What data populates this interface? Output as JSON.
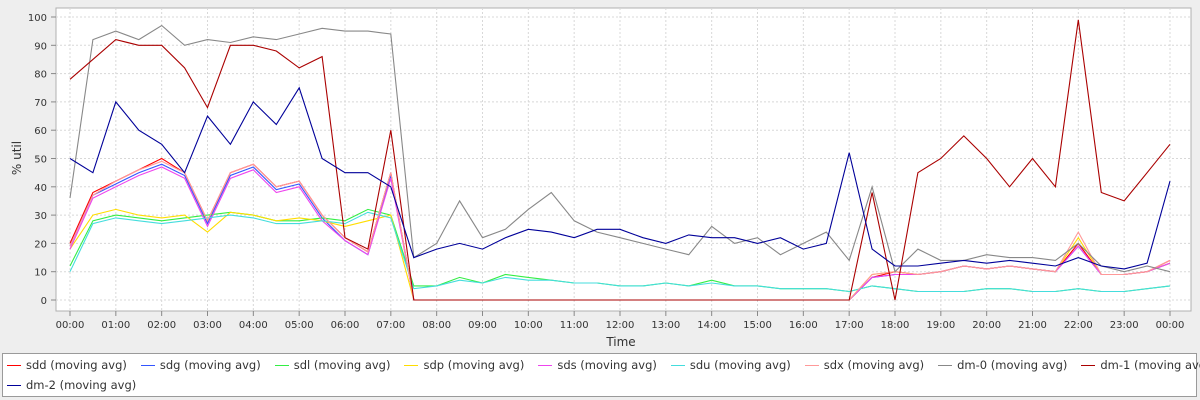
{
  "chart_data": {
    "type": "line",
    "xlabel": "Time",
    "ylabel": "% util",
    "ylim": [
      0,
      100
    ],
    "yticks": [
      0,
      10,
      20,
      30,
      40,
      50,
      60,
      70,
      80,
      90,
      100
    ],
    "xticks": [
      "00:00",
      "01:00",
      "02:00",
      "03:00",
      "04:00",
      "05:00",
      "06:00",
      "07:00",
      "08:00",
      "09:00",
      "10:00",
      "11:00",
      "12:00",
      "13:00",
      "14:00",
      "15:00",
      "16:00",
      "17:00",
      "18:00",
      "19:00",
      "20:00",
      "21:00",
      "22:00",
      "23:00",
      "00:00"
    ],
    "grid": true,
    "legend_position": "bottom",
    "x_hours": [
      0,
      0.5,
      1,
      1.5,
      2,
      2.5,
      3,
      3.5,
      4,
      4.5,
      5,
      5.5,
      6,
      6.5,
      7,
      7.5,
      8,
      8.5,
      9,
      9.5,
      10,
      10.5,
      11,
      11.5,
      12,
      12.5,
      13,
      13.5,
      14,
      14.5,
      15,
      15.5,
      16,
      16.5,
      17,
      17.5,
      18,
      18.5,
      19,
      19.5,
      20,
      20.5,
      21,
      21.5,
      22,
      22.5,
      23,
      23.5,
      24
    ],
    "series": [
      {
        "name": "sdd (moving avg)",
        "color": "#ff0000",
        "values": [
          20,
          38,
          42,
          46,
          50,
          45,
          28,
          45,
          48,
          40,
          42,
          30,
          22,
          17,
          45,
          0,
          0,
          0,
          0,
          0,
          0,
          0,
          0,
          0,
          0,
          0,
          0,
          0,
          0,
          0,
          0,
          0,
          0,
          0,
          0,
          8,
          10,
          9,
          10,
          12,
          11,
          12,
          11,
          10,
          20,
          9,
          9,
          10,
          14
        ]
      },
      {
        "name": "sdg (moving avg)",
        "color": "#3355ff",
        "values": [
          19,
          37,
          41,
          45,
          48,
          44,
          27,
          44,
          47,
          39,
          41,
          29,
          21,
          16,
          44,
          0,
          0,
          0,
          0,
          0,
          0,
          0,
          0,
          0,
          0,
          0,
          0,
          0,
          0,
          0,
          0,
          0,
          0,
          0,
          0,
          8,
          9,
          9,
          10,
          12,
          11,
          12,
          11,
          10,
          19,
          9,
          9,
          10,
          13
        ]
      },
      {
        "name": "sdl (moving avg)",
        "color": "#33ee44",
        "values": [
          12,
          28,
          30,
          29,
          28,
          29,
          30,
          31,
          30,
          28,
          28,
          29,
          28,
          32,
          30,
          5,
          5,
          8,
          6,
          9,
          8,
          7,
          6,
          6,
          5,
          5,
          6,
          5,
          7,
          5,
          5,
          4,
          4,
          4,
          3,
          5,
          4,
          3,
          3,
          3,
          4,
          4,
          3,
          3,
          4,
          3,
          3,
          4,
          5
        ]
      },
      {
        "name": "sdp (moving avg)",
        "color": "#ffdd00",
        "values": [
          18,
          30,
          32,
          30,
          29,
          30,
          24,
          31,
          30,
          28,
          29,
          28,
          26,
          28,
          30,
          0,
          0,
          0,
          0,
          0,
          0,
          0,
          0,
          0,
          0,
          0,
          0,
          0,
          0,
          0,
          0,
          0,
          0,
          0,
          0,
          9,
          10,
          9,
          10,
          12,
          11,
          12,
          11,
          10,
          22,
          9,
          9,
          10,
          13
        ]
      },
      {
        "name": "sds (moving avg)",
        "color": "#ee44ee",
        "values": [
          18,
          36,
          40,
          44,
          47,
          43,
          26,
          43,
          46,
          38,
          40,
          28,
          21,
          16,
          43,
          0,
          0,
          0,
          0,
          0,
          0,
          0,
          0,
          0,
          0,
          0,
          0,
          0,
          0,
          0,
          0,
          0,
          0,
          0,
          0,
          8,
          9,
          9,
          10,
          12,
          11,
          12,
          11,
          10,
          19,
          9,
          9,
          10,
          13
        ]
      },
      {
        "name": "sdu (moving avg)",
        "color": "#44dddd",
        "values": [
          10,
          27,
          29,
          28,
          27,
          28,
          29,
          30,
          29,
          27,
          27,
          28,
          27,
          31,
          29,
          4,
          5,
          7,
          6,
          8,
          7,
          7,
          6,
          6,
          5,
          5,
          6,
          5,
          6,
          5,
          5,
          4,
          4,
          4,
          3,
          5,
          4,
          3,
          3,
          3,
          4,
          4,
          3,
          3,
          4,
          3,
          3,
          4,
          5
        ]
      },
      {
        "name": "sdx (moving avg)",
        "color": "#ff9999",
        "values": [
          19,
          37,
          42,
          46,
          49,
          45,
          28,
          45,
          48,
          40,
          42,
          30,
          22,
          17,
          45,
          0,
          0,
          0,
          0,
          0,
          0,
          0,
          0,
          0,
          0,
          0,
          0,
          0,
          0,
          0,
          0,
          0,
          0,
          0,
          0,
          9,
          10,
          9,
          10,
          12,
          11,
          12,
          11,
          10,
          24,
          9,
          9,
          10,
          14
        ]
      },
      {
        "name": "dm-0 (moving avg)",
        "color": "#888888",
        "values": [
          36,
          92,
          95,
          92,
          97,
          90,
          92,
          91,
          93,
          92,
          94,
          96,
          95,
          95,
          94,
          15,
          20,
          35,
          22,
          25,
          32,
          38,
          28,
          24,
          22,
          20,
          18,
          16,
          26,
          20,
          22,
          16,
          20,
          24,
          14,
          40,
          10,
          18,
          14,
          14,
          16,
          15,
          15,
          14,
          20,
          12,
          10,
          12,
          10
        ]
      },
      {
        "name": "dm-1 (moving avg)",
        "color": "#aa0000",
        "values": [
          78,
          85,
          92,
          90,
          90,
          82,
          68,
          90,
          90,
          88,
          82,
          86,
          22,
          18,
          60,
          0,
          0,
          0,
          0,
          0,
          0,
          0,
          0,
          0,
          0,
          0,
          0,
          0,
          0,
          0,
          0,
          0,
          0,
          0,
          0,
          38,
          0,
          45,
          50,
          58,
          50,
          40,
          50,
          40,
          99,
          38,
          35,
          45,
          55
        ]
      },
      {
        "name": "dm-2 (moving avg)",
        "color": "#000099",
        "values": [
          50,
          45,
          70,
          60,
          55,
          45,
          65,
          55,
          70,
          62,
          75,
          50,
          45,
          45,
          40,
          15,
          18,
          20,
          18,
          22,
          25,
          24,
          22,
          25,
          25,
          22,
          20,
          23,
          22,
          22,
          20,
          22,
          18,
          20,
          52,
          18,
          12,
          12,
          13,
          14,
          13,
          14,
          13,
          12,
          15,
          12,
          11,
          13,
          42
        ]
      }
    ]
  }
}
